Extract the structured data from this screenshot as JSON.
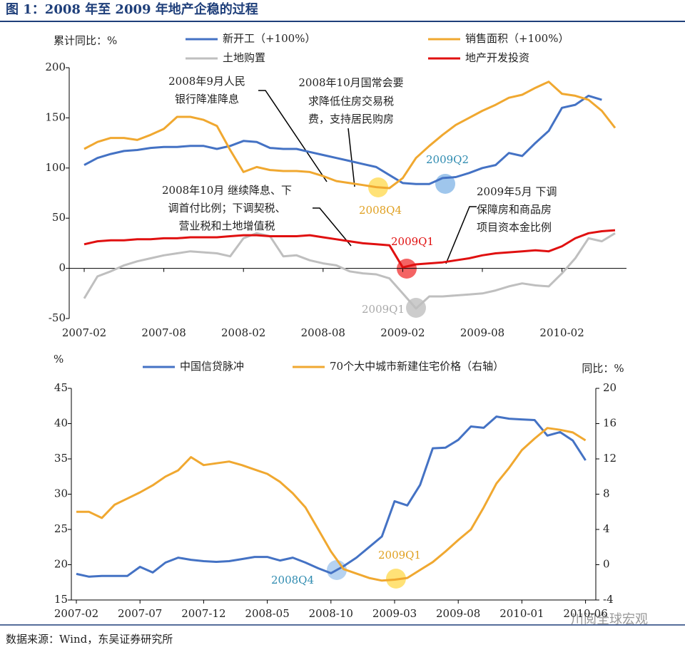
{
  "title": "图 1：2008 年至 2009 年地产企稳的过程",
  "source": "数据来源：Wind，东吴证券研究所",
  "watermark": "川阅全球宏观",
  "chart_data": [
    {
      "type": "line",
      "ylabel": "累计同比：%",
      "categories": [
        "2007-02",
        null,
        null,
        null,
        null,
        null,
        "2007-08",
        null,
        null,
        null,
        null,
        null,
        "2008-02",
        null,
        null,
        null,
        null,
        null,
        "2008-08",
        null,
        null,
        null,
        null,
        null,
        "2009-02",
        null,
        null,
        null,
        null,
        null,
        "2009-08",
        null,
        null,
        null,
        null,
        null,
        "2010-02",
        null,
        null,
        null,
        null
      ],
      "ylim": [
        -50,
        200
      ],
      "yticks": [
        -50,
        0,
        50,
        100,
        150,
        200
      ],
      "series": [
        {
          "name": "新开工（+100%）",
          "color": "#4472c4",
          "values": [
            103,
            110,
            114,
            117,
            118,
            120,
            121,
            121,
            122,
            122,
            119,
            122,
            127,
            126,
            120,
            119,
            119,
            116,
            113,
            110,
            107,
            104,
            101,
            93,
            85,
            84,
            84,
            90,
            91,
            95,
            100,
            103,
            115,
            112,
            125,
            137,
            160,
            163,
            172,
            168,
            null
          ]
        },
        {
          "name": "销售面积（+100%）",
          "color": "#f0a830",
          "values": [
            119,
            126,
            130,
            130,
            128,
            133,
            139,
            151,
            151,
            148,
            142,
            118,
            96,
            101,
            98,
            97,
            97,
            96,
            92,
            87,
            85,
            83,
            81,
            80,
            90,
            110,
            122,
            133,
            143,
            150,
            157,
            163,
            170,
            173,
            180,
            186,
            174,
            172,
            168,
            157,
            140
          ]
        },
        {
          "name": "土地购置",
          "color": "#bfbfbf",
          "values": [
            -30,
            -8,
            -3,
            3,
            7,
            10,
            13,
            15,
            17,
            16,
            15,
            12,
            30,
            35,
            32,
            12,
            13,
            8,
            5,
            3,
            -3,
            -5,
            -6,
            -10,
            -25,
            -40,
            -28,
            -28,
            -27,
            -26,
            -25,
            -22,
            -18,
            -15,
            -17,
            -18,
            -5,
            10,
            30,
            27,
            35
          ]
        },
        {
          "name": "地产开发投资",
          "color": "#e01010",
          "values": [
            24,
            27,
            28,
            28,
            29,
            29,
            30,
            30,
            31,
            31,
            31,
            32,
            33,
            33,
            32,
            32,
            32,
            33,
            31,
            29,
            27,
            25,
            24,
            23,
            1,
            4,
            5,
            6,
            8,
            10,
            13,
            15,
            16,
            17,
            18,
            17,
            22,
            30,
            35,
            37,
            38
          ]
        }
      ],
      "annotations": [
        {
          "lines": [
            "2008年9月人民",
            "银行降准降息"
          ]
        },
        {
          "lines": [
            "2008年10月国常会要",
            "求降低住房交易税",
            "费，支持居民购房"
          ]
        },
        {
          "lines": [
            "2008年10月 继续降息、下",
            "调首付比例；下调契税、",
            "营业税和土地增值税"
          ]
        },
        {
          "lines": [
            "2009年5月 下调",
            "保障房和商品房",
            "项目资本金比例"
          ]
        }
      ],
      "callouts": [
        "2009Q2",
        "2008Q4",
        "2009Q1",
        "2009Q1"
      ]
    },
    {
      "type": "line",
      "ylabel": "%",
      "y2label": "同比：%",
      "categories": [
        "2007-02",
        null,
        null,
        null,
        null,
        "2007-07",
        null,
        null,
        null,
        null,
        "2007-12",
        null,
        null,
        null,
        null,
        "2008-05",
        null,
        null,
        null,
        null,
        "2008-10",
        null,
        null,
        null,
        null,
        "2009-03",
        null,
        null,
        null,
        null,
        "2009-08",
        null,
        null,
        null,
        null,
        "2010-01",
        null,
        null,
        null,
        null,
        "2010-06"
      ],
      "ylim": [
        15,
        45
      ],
      "yticks": [
        15,
        20,
        25,
        30,
        35,
        40,
        45
      ],
      "y2lim": [
        -4,
        20
      ],
      "y2ticks": [
        -4,
        0,
        4,
        8,
        12,
        16,
        20
      ],
      "series": [
        {
          "name": "中国信贷脉冲",
          "color": "#4472c4",
          "values": [
            18.7,
            18.3,
            18.4,
            18.4,
            18.4,
            19.7,
            18.9,
            20.3,
            21.0,
            20.7,
            20.5,
            20.4,
            20.5,
            20.8,
            21.1,
            21.1,
            20.6,
            21.0,
            20.3,
            19.5,
            18.8,
            19.8,
            21.0,
            22.5,
            24.0,
            29.0,
            28.4,
            31.3,
            36.5,
            36.6,
            37.7,
            39.6,
            39.4,
            41.0,
            40.7,
            40.6,
            40.5,
            38.3,
            38.8,
            37.6,
            34.8
          ]
        },
        {
          "name": "70个大中城市新建住宅价格（右轴）",
          "color": "#f0a830",
          "axis": "y2",
          "values": [
            6.0,
            6.0,
            5.3,
            6.8,
            7.5,
            8.2,
            9.0,
            10.0,
            10.7,
            12.2,
            11.3,
            11.5,
            11.7,
            11.3,
            10.8,
            10.3,
            9.4,
            8.1,
            6.5,
            4.0,
            1.5,
            -0.5,
            -1.0,
            -1.5,
            -1.8,
            -1.7,
            -1.5,
            -0.6,
            0.3,
            1.5,
            2.8,
            4.0,
            6.5,
            9.2,
            11.0,
            13.0,
            14.3,
            15.5,
            15.3,
            15.0,
            14.1
          ]
        }
      ],
      "callouts": [
        "2008Q4",
        "2009Q1"
      ]
    }
  ]
}
